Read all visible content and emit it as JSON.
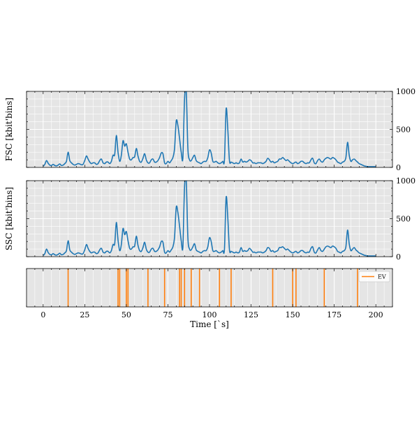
{
  "chart_data": [
    {
      "type": "line",
      "name": "fsc-panel",
      "ylabel": "FSC [kbit'bins]",
      "xlim": [
        -10,
        210
      ],
      "ylim": [
        0,
        1000
      ],
      "yticks": [
        0,
        500,
        1000
      ],
      "ytick_labels": [
        "0",
        "500",
        "1000"
      ],
      "ytick_side": "right",
      "grid": true,
      "color": "#1f77b4",
      "x": [
        0,
        1,
        2,
        3,
        4,
        5,
        6,
        7,
        8,
        9,
        10,
        11,
        12,
        13,
        14,
        15,
        16,
        17,
        18,
        19,
        20,
        21,
        22,
        23,
        24,
        25,
        26,
        27,
        28,
        29,
        30,
        31,
        32,
        33,
        34,
        35,
        36,
        37,
        38,
        39,
        40,
        41,
        42,
        43,
        44,
        45,
        46,
        47,
        48,
        49,
        50,
        51,
        52,
        53,
        54,
        55,
        56,
        57,
        58,
        59,
        60,
        61,
        62,
        63,
        64,
        65,
        66,
        67,
        68,
        69,
        70,
        71,
        72,
        73,
        74,
        75,
        76,
        77,
        78,
        79,
        80,
        81,
        82,
        83,
        84,
        85,
        86,
        87,
        88,
        89,
        90,
        91,
        92,
        93,
        94,
        95,
        96,
        97,
        98,
        99,
        100,
        101,
        102,
        103,
        104,
        105,
        106,
        107,
        108,
        109,
        110,
        111,
        112,
        113,
        114,
        115,
        116,
        117,
        118,
        119,
        120,
        121,
        122,
        123,
        124,
        125,
        126,
        127,
        128,
        129,
        130,
        131,
        132,
        133,
        134,
        135,
        136,
        137,
        138,
        139,
        140,
        141,
        142,
        143,
        144,
        145,
        146,
        147,
        148,
        149,
        150,
        151,
        152,
        153,
        154,
        155,
        156,
        157,
        158,
        159,
        160,
        161,
        162,
        163,
        164,
        165,
        166,
        167,
        168,
        169,
        170,
        171,
        172,
        173,
        174,
        175,
        176,
        177,
        178,
        179,
        180,
        181,
        182,
        183,
        184,
        185,
        186,
        187,
        188,
        189,
        190,
        191,
        192,
        193,
        194,
        195,
        196,
        197,
        198,
        199,
        200
      ],
      "y": [
        15,
        40,
        90,
        55,
        30,
        25,
        40,
        25,
        20,
        30,
        45,
        25,
        30,
        50,
        80,
        200,
        90,
        60,
        40,
        30,
        40,
        50,
        45,
        35,
        40,
        90,
        150,
        110,
        70,
        50,
        60,
        60,
        40,
        50,
        90,
        110,
        60,
        50,
        70,
        70,
        50,
        80,
        160,
        170,
        420,
        200,
        80,
        160,
        350,
        280,
        310,
        200,
        110,
        100,
        130,
        140,
        250,
        150,
        80,
        70,
        120,
        180,
        100,
        60,
        60,
        100,
        110,
        70,
        70,
        90,
        130,
        190,
        180,
        60,
        50,
        80,
        60,
        90,
        130,
        250,
        610,
        550,
        380,
        200,
        130,
        900,
        1010,
        250,
        100,
        90,
        130,
        160,
        90,
        70,
        60,
        50,
        70,
        80,
        80,
        130,
        230,
        190,
        80,
        70,
        80,
        60,
        50,
        60,
        80,
        100,
        770,
        500,
        90,
        70,
        60,
        50,
        60,
        50,
        60,
        110,
        70,
        80,
        70,
        80,
        100,
        90,
        60,
        60,
        50,
        60,
        60,
        60,
        50,
        60,
        80,
        120,
        100,
        70,
        80,
        60,
        70,
        80,
        110,
        110,
        130,
        110,
        90,
        100,
        80,
        60,
        50,
        60,
        70,
        50,
        60,
        80,
        80,
        60,
        50,
        60,
        60,
        100,
        120,
        60,
        50,
        90,
        110,
        80,
        70,
        100,
        120,
        130,
        120,
        110,
        130,
        120,
        100,
        70,
        60,
        50,
        70,
        80,
        130,
        330,
        160,
        80,
        100,
        110,
        90,
        70,
        50,
        40,
        30,
        20,
        15,
        10,
        10,
        10,
        10,
        10,
        10
      ]
    },
    {
      "type": "line",
      "name": "ssc-panel",
      "ylabel": "SSC [kbit'bins]",
      "xlim": [
        -10,
        210
      ],
      "ylim": [
        0,
        1000
      ],
      "yticks": [
        0,
        500,
        1000
      ],
      "ytick_labels": [
        "0",
        "500",
        "1000"
      ],
      "ytick_side": "right",
      "grid": true,
      "color": "#1f77b4",
      "x": [
        0,
        1,
        2,
        3,
        4,
        5,
        6,
        7,
        8,
        9,
        10,
        11,
        12,
        13,
        14,
        15,
        16,
        17,
        18,
        19,
        20,
        21,
        22,
        23,
        24,
        25,
        26,
        27,
        28,
        29,
        30,
        31,
        32,
        33,
        34,
        35,
        36,
        37,
        38,
        39,
        40,
        41,
        42,
        43,
        44,
        45,
        46,
        47,
        48,
        49,
        50,
        51,
        52,
        53,
        54,
        55,
        56,
        57,
        58,
        59,
        60,
        61,
        62,
        63,
        64,
        65,
        66,
        67,
        68,
        69,
        70,
        71,
        72,
        73,
        74,
        75,
        76,
        77,
        78,
        79,
        80,
        81,
        82,
        83,
        84,
        85,
        86,
        87,
        88,
        89,
        90,
        91,
        92,
        93,
        94,
        95,
        96,
        97,
        98,
        99,
        100,
        101,
        102,
        103,
        104,
        105,
        106,
        107,
        108,
        109,
        110,
        111,
        112,
        113,
        114,
        115,
        116,
        117,
        118,
        119,
        120,
        121,
        122,
        123,
        124,
        125,
        126,
        127,
        128,
        129,
        130,
        131,
        132,
        133,
        134,
        135,
        136,
        137,
        138,
        139,
        140,
        141,
        142,
        143,
        144,
        145,
        146,
        147,
        148,
        149,
        150,
        151,
        152,
        153,
        154,
        155,
        156,
        157,
        158,
        159,
        160,
        161,
        162,
        163,
        164,
        165,
        166,
        167,
        168,
        169,
        170,
        171,
        172,
        173,
        174,
        175,
        176,
        177,
        178,
        179,
        180,
        181,
        182,
        183,
        184,
        185,
        186,
        187,
        188,
        189,
        190,
        191,
        192,
        193,
        194,
        195,
        196,
        197,
        198,
        199,
        200
      ],
      "y": [
        15,
        40,
        100,
        55,
        30,
        25,
        40,
        25,
        20,
        30,
        45,
        25,
        30,
        50,
        80,
        210,
        90,
        60,
        40,
        30,
        40,
        50,
        45,
        35,
        40,
        90,
        160,
        110,
        70,
        50,
        60,
        60,
        40,
        50,
        90,
        110,
        60,
        50,
        70,
        70,
        50,
        80,
        160,
        170,
        450,
        220,
        80,
        160,
        370,
        290,
        330,
        210,
        110,
        100,
        130,
        140,
        270,
        150,
        80,
        70,
        120,
        190,
        100,
        60,
        60,
        100,
        110,
        70,
        70,
        90,
        130,
        200,
        190,
        60,
        50,
        80,
        60,
        90,
        130,
        260,
        650,
        580,
        400,
        210,
        130,
        920,
        1010,
        250,
        100,
        90,
        130,
        170,
        90,
        70,
        60,
        50,
        70,
        80,
        80,
        130,
        250,
        200,
        80,
        70,
        80,
        60,
        50,
        60,
        80,
        100,
        780,
        510,
        90,
        70,
        60,
        50,
        60,
        50,
        60,
        120,
        70,
        80,
        70,
        80,
        110,
        90,
        60,
        60,
        50,
        60,
        60,
        60,
        50,
        60,
        80,
        120,
        110,
        70,
        80,
        60,
        70,
        80,
        120,
        120,
        130,
        110,
        90,
        100,
        80,
        60,
        50,
        60,
        70,
        50,
        60,
        80,
        80,
        60,
        50,
        60,
        60,
        110,
        130,
        60,
        50,
        90,
        120,
        80,
        70,
        100,
        130,
        140,
        130,
        120,
        140,
        130,
        110,
        70,
        60,
        50,
        70,
        80,
        130,
        350,
        170,
        80,
        100,
        120,
        90,
        70,
        50,
        40,
        30,
        20,
        15,
        10,
        10,
        10,
        10,
        10,
        10
      ]
    },
    {
      "type": "event",
      "name": "event-panel",
      "xlim": [
        -10,
        210
      ],
      "xticks": [
        0,
        25,
        50,
        75,
        100,
        125,
        150,
        175,
        200
      ],
      "xtick_labels": [
        "0",
        "25",
        "50",
        "75",
        "100",
        "125",
        "150",
        "175",
        "200"
      ],
      "xlabel": "Time [`s]",
      "grid": true,
      "color": "#ff7f0e",
      "legend": [
        "EV"
      ],
      "legend_loc": "top-right",
      "events": [
        15,
        45,
        46,
        50,
        51,
        63,
        73,
        82,
        83,
        85,
        89,
        94,
        106,
        113,
        138,
        150,
        152,
        169,
        189
      ]
    }
  ]
}
